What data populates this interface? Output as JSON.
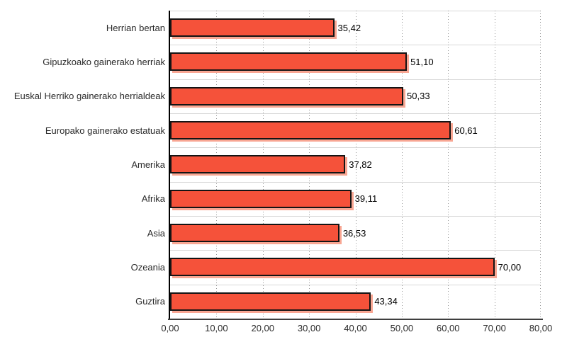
{
  "chart_data": {
    "type": "bar",
    "orientation": "horizontal",
    "title": "",
    "xlabel": "",
    "ylabel": "",
    "xlim": [
      0,
      80
    ],
    "x_tick_step": 10,
    "grid": "vertical-dotted-and-horizontal-band-lines",
    "legend": "none",
    "categories": [
      "Herrian bertan",
      "Gipuzkoako gainerako herriak",
      "Euskal Herriko gainerako herrialdeak",
      "Europako gainerako estatuak",
      "Amerika",
      "Afrika",
      "Asia",
      "Ozeania",
      "Guztira"
    ],
    "values": [
      35.42,
      51.1,
      50.33,
      60.61,
      37.82,
      39.11,
      36.53,
      70.0,
      43.34
    ],
    "value_labels": [
      "35,42",
      "51,10",
      "50,33",
      "60,61",
      "37,82",
      "39,11",
      "36,53",
      "70,00",
      "43,34"
    ],
    "x_tick_labels": [
      "0,00",
      "10,00",
      "20,00",
      "30,00",
      "40,00",
      "50,00",
      "60,00",
      "70,00",
      "80,00"
    ],
    "colors": {
      "bar_fill": "#f5523a",
      "bar_border": "#141414",
      "bar_shadow": "#f8a693",
      "y_axis": "#000000",
      "x_axis": "#3e3e3e",
      "h_gridline": "#d8d8d8",
      "v_gridline": "#979797",
      "text": "#2a2a2a",
      "background": "#ffffff"
    }
  }
}
